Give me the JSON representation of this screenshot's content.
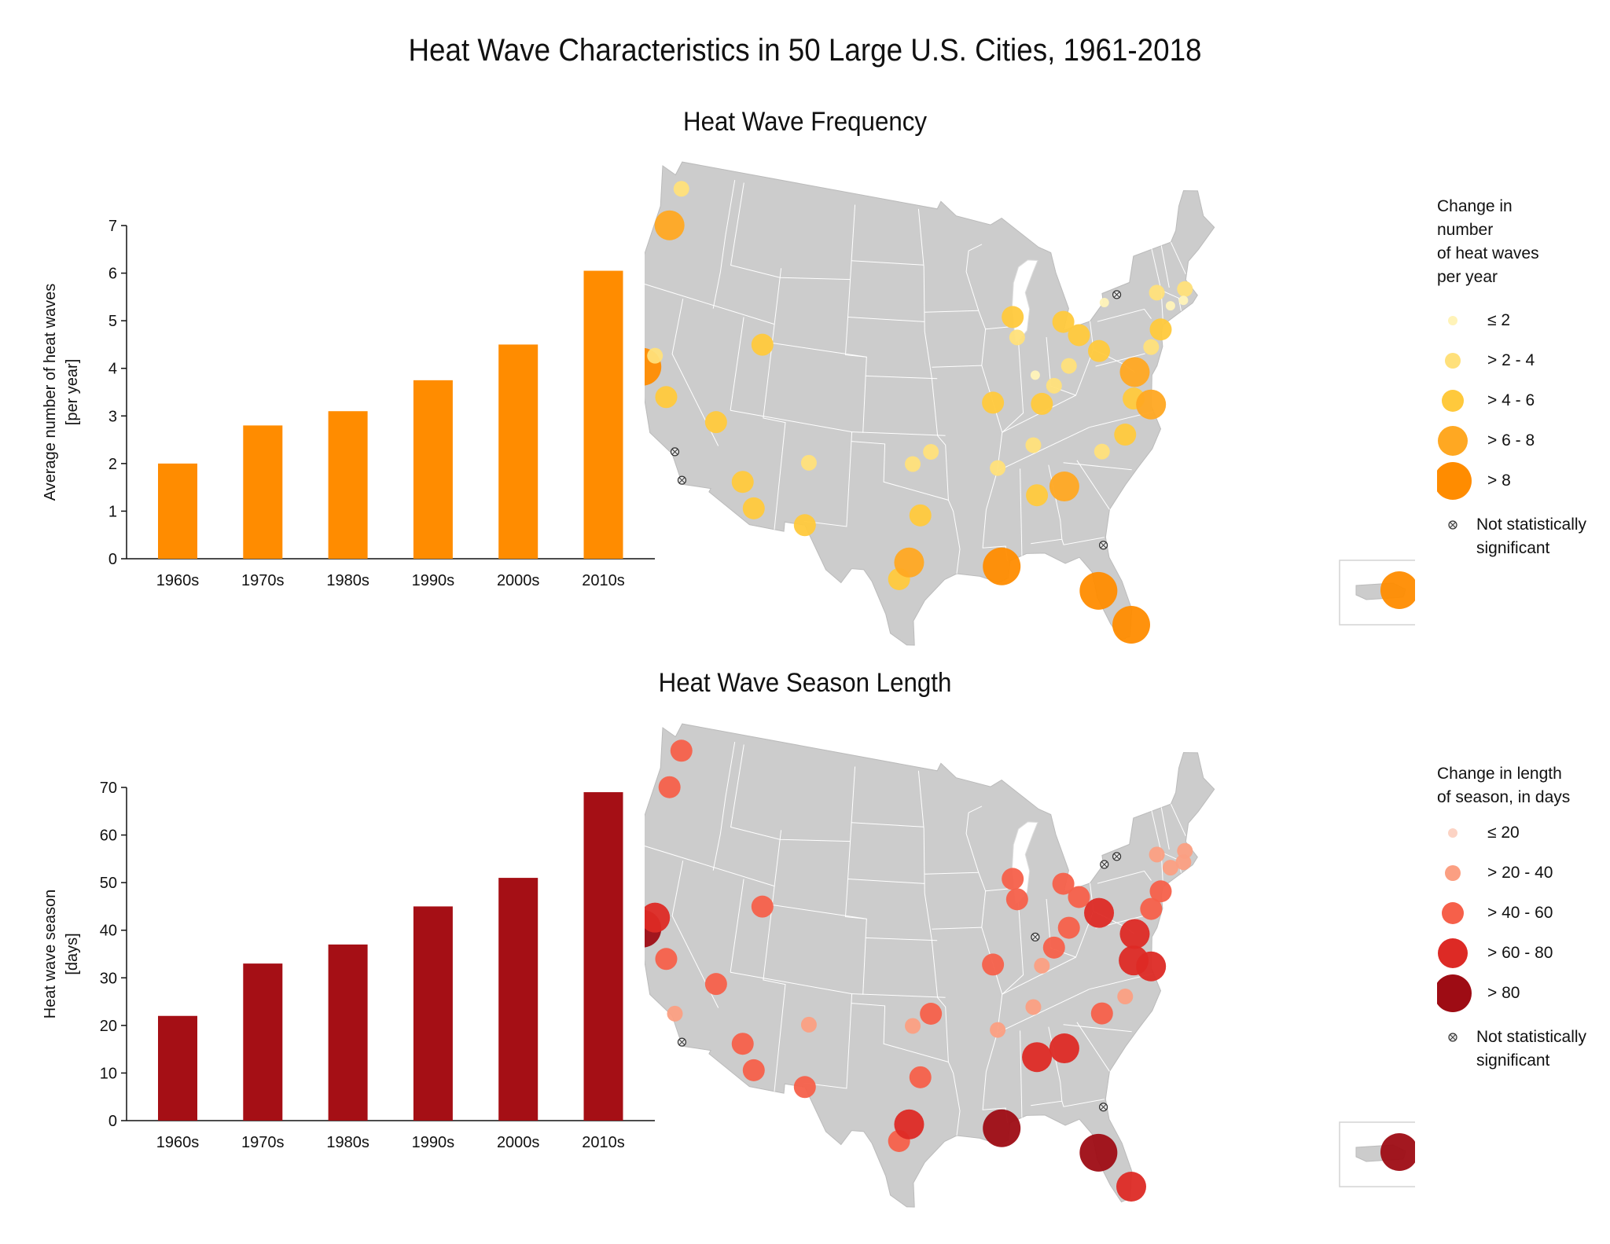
{
  "title": "Heat Wave Characteristics in 50 Large U.S. Cities, 1961-2018",
  "colors": {
    "freq_bar": "#ff8c00",
    "season_bar": "#a50f15",
    "map_fill": "#cccccc",
    "map_border": "#ffffff",
    "freq_scale": [
      "#fff3b8",
      "#ffe07a",
      "#ffc93c",
      "#ffa822",
      "#ff8c00"
    ],
    "season_scale": [
      "#fcd3c4",
      "#fb9f82",
      "#f6604a",
      "#dd2a25",
      "#9e0c14"
    ]
  },
  "frequency": {
    "section_title": "Heat Wave Frequency",
    "legend_title": "Change in\nnumber\nof heat waves\nper year",
    "legend_items": [
      "≤ 2",
      "> 2 - 4",
      "> 4 - 6",
      "> 6 - 8",
      "> 8"
    ],
    "not_significant_label": "Not statistically\nsignificant",
    "map_icon": "us-map-icon",
    "map_cities": [
      {
        "lon": -122.3,
        "lat": 47.6,
        "cls": 1
      },
      {
        "lon": -122.7,
        "lat": 45.5,
        "cls": 3
      },
      {
        "lon": -122.4,
        "lat": 37.8,
        "cls": 4
      },
      {
        "lon": -121.5,
        "lat": 38.6,
        "cls": 1
      },
      {
        "lon": -119.8,
        "lat": 36.7,
        "cls": 2
      },
      {
        "lon": -118.2,
        "lat": 34.05,
        "cls": -1
      },
      {
        "lon": -117.2,
        "lat": 32.7,
        "cls": -1
      },
      {
        "lon": -115.1,
        "lat": 36.2,
        "cls": 2
      },
      {
        "lon": -111.9,
        "lat": 40.8,
        "cls": 2
      },
      {
        "lon": -112.1,
        "lat": 33.45,
        "cls": 2
      },
      {
        "lon": -110.9,
        "lat": 32.2,
        "cls": 2
      },
      {
        "lon": -106.6,
        "lat": 35.1,
        "cls": 1
      },
      {
        "lon": -106.5,
        "lat": 31.8,
        "cls": 2
      },
      {
        "lon": -97.5,
        "lat": 35.5,
        "cls": 1
      },
      {
        "lon": -95.9,
        "lat": 36.15,
        "cls": 1
      },
      {
        "lon": -96.8,
        "lat": 32.8,
        "cls": 2
      },
      {
        "lon": -98.5,
        "lat": 29.4,
        "cls": 2
      },
      {
        "lon": -97.7,
        "lat": 30.3,
        "cls": 3
      },
      {
        "lon": -90.2,
        "lat": 38.6,
        "cls": 2
      },
      {
        "lon": -90.05,
        "lat": 35.15,
        "cls": 1
      },
      {
        "lon": -90.1,
        "lat": 29.95,
        "cls": 4
      },
      {
        "lon": -87.9,
        "lat": 43.0,
        "cls": 2
      },
      {
        "lon": -87.6,
        "lat": 41.9,
        "cls": 1
      },
      {
        "lon": -86.15,
        "lat": 39.8,
        "cls": 0
      },
      {
        "lon": -85.75,
        "lat": 38.25,
        "cls": 2
      },
      {
        "lon": -84.5,
        "lat": 39.1,
        "cls": 1
      },
      {
        "lon": -86.8,
        "lat": 36.15,
        "cls": 1
      },
      {
        "lon": -86.8,
        "lat": 33.5,
        "cls": 2
      },
      {
        "lon": -84.4,
        "lat": 33.75,
        "cls": 3
      },
      {
        "lon": -83.05,
        "lat": 42.35,
        "cls": 2
      },
      {
        "lon": -81.7,
        "lat": 41.5,
        "cls": 2
      },
      {
        "lon": -82.95,
        "lat": 40.0,
        "cls": 1
      },
      {
        "lon": -80.0,
        "lat": 40.45,
        "cls": 2
      },
      {
        "lon": -78.9,
        "lat": 42.9,
        "cls": 0
      },
      {
        "lon": -77.6,
        "lat": 43.15,
        "cls": -1
      },
      {
        "lon": -80.85,
        "lat": 35.2,
        "cls": 1
      },
      {
        "lon": -78.65,
        "lat": 35.8,
        "cls": 2
      },
      {
        "lon": -77.45,
        "lat": 37.55,
        "cls": 2
      },
      {
        "lon": -77.0,
        "lat": 38.9,
        "cls": 3
      },
      {
        "lon": -76.0,
        "lat": 37.0,
        "cls": 3
      },
      {
        "lon": -75.15,
        "lat": 39.95,
        "cls": 1
      },
      {
        "lon": -74.0,
        "lat": 40.7,
        "cls": 2
      },
      {
        "lon": -73.75,
        "lat": 42.65,
        "cls": 1
      },
      {
        "lon": -71.05,
        "lat": 42.35,
        "cls": 1
      },
      {
        "lon": -71.4,
        "lat": 41.8,
        "cls": 0
      },
      {
        "lon": -72.7,
        "lat": 41.75,
        "cls": 0
      },
      {
        "lon": -81.65,
        "lat": 30.3,
        "cls": -1
      },
      {
        "lon": -82.45,
        "lat": 27.95,
        "cls": 4
      },
      {
        "lon": -80.2,
        "lat": 25.8,
        "cls": 4
      },
      {
        "lon": -66.1,
        "lat": 18.45,
        "cls": 4,
        "inset": true
      }
    ],
    "chart_data": {
      "type": "bar",
      "categories": [
        "1960s",
        "1970s",
        "1980s",
        "1990s",
        "2000s",
        "2010s"
      ],
      "values": [
        2.0,
        2.8,
        3.1,
        3.75,
        4.5,
        6.05
      ],
      "title": "Heat Wave Frequency",
      "xlabel": "",
      "ylabel_line1": "Average number of heat waves",
      "ylabel_line2": "[per year]",
      "ylim": [
        0,
        7
      ],
      "yticks": [
        0,
        1,
        2,
        3,
        4,
        5,
        6,
        7
      ]
    }
  },
  "season": {
    "section_title": "Heat Wave Season Length",
    "legend_title": "Change in length\nof season, in days",
    "legend_items": [
      "≤ 20",
      "> 20 - 40",
      "> 40 - 60",
      "> 60 - 80",
      "> 80"
    ],
    "not_significant_label": "Not statistically\nsignificant",
    "map_icon": "us-map-icon",
    "map_cities": [
      {
        "lon": -122.3,
        "lat": 47.6,
        "cls": 2
      },
      {
        "lon": -122.7,
        "lat": 45.5,
        "cls": 2
      },
      {
        "lon": -122.4,
        "lat": 37.8,
        "cls": 4
      },
      {
        "lon": -121.5,
        "lat": 38.6,
        "cls": 3
      },
      {
        "lon": -119.8,
        "lat": 36.7,
        "cls": 2
      },
      {
        "lon": -118.2,
        "lat": 34.05,
        "cls": 1
      },
      {
        "lon": -117.2,
        "lat": 32.7,
        "cls": -1
      },
      {
        "lon": -115.1,
        "lat": 36.2,
        "cls": 2
      },
      {
        "lon": -111.9,
        "lat": 40.8,
        "cls": 2
      },
      {
        "lon": -112.1,
        "lat": 33.45,
        "cls": 2
      },
      {
        "lon": -110.9,
        "lat": 32.2,
        "cls": 2
      },
      {
        "lon": -106.6,
        "lat": 35.1,
        "cls": 1
      },
      {
        "lon": -106.5,
        "lat": 31.8,
        "cls": 2
      },
      {
        "lon": -97.5,
        "lat": 35.5,
        "cls": 1
      },
      {
        "lon": -95.9,
        "lat": 36.15,
        "cls": 2
      },
      {
        "lon": -96.8,
        "lat": 32.8,
        "cls": 2
      },
      {
        "lon": -98.5,
        "lat": 29.4,
        "cls": 2
      },
      {
        "lon": -97.7,
        "lat": 30.3,
        "cls": 3
      },
      {
        "lon": -90.2,
        "lat": 38.6,
        "cls": 2
      },
      {
        "lon": -90.05,
        "lat": 35.15,
        "cls": 1
      },
      {
        "lon": -90.1,
        "lat": 29.95,
        "cls": 4
      },
      {
        "lon": -87.9,
        "lat": 43.0,
        "cls": 2
      },
      {
        "lon": -87.6,
        "lat": 41.9,
        "cls": 2
      },
      {
        "lon": -86.15,
        "lat": 39.8,
        "cls": -1
      },
      {
        "lon": -85.75,
        "lat": 38.25,
        "cls": 1
      },
      {
        "lon": -84.5,
        "lat": 39.1,
        "cls": 2
      },
      {
        "lon": -86.8,
        "lat": 36.15,
        "cls": 1
      },
      {
        "lon": -86.8,
        "lat": 33.5,
        "cls": 3
      },
      {
        "lon": -84.4,
        "lat": 33.75,
        "cls": 3
      },
      {
        "lon": -83.05,
        "lat": 42.35,
        "cls": 2
      },
      {
        "lon": -81.7,
        "lat": 41.5,
        "cls": 2
      },
      {
        "lon": -82.95,
        "lat": 40.0,
        "cls": 2
      },
      {
        "lon": -80.0,
        "lat": 40.45,
        "cls": 3
      },
      {
        "lon": -78.9,
        "lat": 42.9,
        "cls": -1
      },
      {
        "lon": -77.6,
        "lat": 43.15,
        "cls": -1
      },
      {
        "lon": -80.85,
        "lat": 35.2,
        "cls": 2
      },
      {
        "lon": -78.65,
        "lat": 35.8,
        "cls": 1
      },
      {
        "lon": -77.45,
        "lat": 37.55,
        "cls": 3
      },
      {
        "lon": -77.0,
        "lat": 38.9,
        "cls": 3
      },
      {
        "lon": -76.0,
        "lat": 37.0,
        "cls": 3
      },
      {
        "lon": -75.15,
        "lat": 39.95,
        "cls": 2
      },
      {
        "lon": -74.0,
        "lat": 40.7,
        "cls": 2
      },
      {
        "lon": -73.75,
        "lat": 42.65,
        "cls": 1
      },
      {
        "lon": -71.05,
        "lat": 42.35,
        "cls": 1
      },
      {
        "lon": -71.4,
        "lat": 41.8,
        "cls": 1
      },
      {
        "lon": -72.7,
        "lat": 41.75,
        "cls": 1
      },
      {
        "lon": -81.65,
        "lat": 30.3,
        "cls": -1
      },
      {
        "lon": -82.45,
        "lat": 27.95,
        "cls": 4
      },
      {
        "lon": -80.2,
        "lat": 25.8,
        "cls": 3
      },
      {
        "lon": -66.1,
        "lat": 18.45,
        "cls": 4,
        "inset": true
      }
    ],
    "chart_data": {
      "type": "bar",
      "categories": [
        "1960s",
        "1970s",
        "1980s",
        "1990s",
        "2000s",
        "2010s"
      ],
      "values": [
        22,
        33,
        37,
        45,
        51,
        69
      ],
      "title": "Heat Wave Season Length",
      "xlabel": "",
      "ylabel_line1": "Heat wave season",
      "ylabel_line2": "[days]",
      "ylim": [
        0,
        70
      ],
      "yticks": [
        0,
        10,
        20,
        30,
        40,
        50,
        60,
        70
      ]
    }
  }
}
